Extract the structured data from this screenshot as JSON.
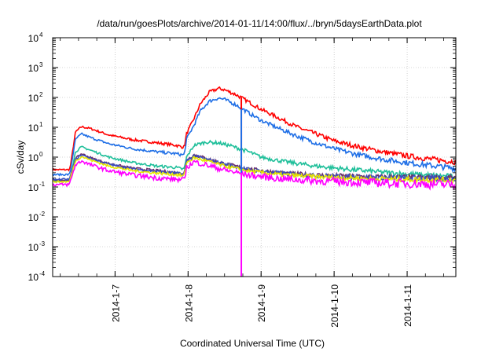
{
  "chart_data": {
    "type": "line",
    "title": "/data/run/goesPlots/archive/2014-01-11/14:00/flux/../bryn/5daysEarthData.plot",
    "xlabel": "Coordinated Universal Time (UTC)",
    "ylabel": "cSv/day",
    "y_scale": "log",
    "ylim": [
      0.0001,
      10000
    ],
    "y_ticks": [
      {
        "value": 0.0001,
        "base": "10",
        "exp": "-4"
      },
      {
        "value": 0.001,
        "base": "10",
        "exp": "-3"
      },
      {
        "value": 0.01,
        "base": "10",
        "exp": "-2"
      },
      {
        "value": 0.1,
        "base": "10",
        "exp": "-1"
      },
      {
        "value": 1,
        "base": "10",
        "exp": "0"
      },
      {
        "value": 10,
        "base": "10",
        "exp": "1"
      },
      {
        "value": 100,
        "base": "10",
        "exp": "2"
      },
      {
        "value": 1000,
        "base": "10",
        "exp": "3"
      },
      {
        "value": 10000,
        "base": "10",
        "exp": "4"
      }
    ],
    "xlim": [
      "2014-01-06T03:30",
      "2014-01-11T16:00"
    ],
    "x_ticks": [
      {
        "value": "2014-01-07T00:00",
        "label": "2014-1-7"
      },
      {
        "value": "2014-01-08T00:00",
        "label": "2014-1-8"
      },
      {
        "value": "2014-01-09T00:00",
        "label": "2014-1-9"
      },
      {
        "value": "2014-01-10T00:00",
        "label": "2014-1-10"
      },
      {
        "value": "2014-01-11T00:00",
        "label": "2014-1-11"
      }
    ],
    "grid": true,
    "legend": "none",
    "series": [
      {
        "color": "#ff0000",
        "points": [
          [
            "2014-01-06T03:30",
            0.38
          ],
          [
            "2014-01-06T09:00",
            0.38
          ],
          [
            "2014-01-06T09:20",
            0.5
          ],
          [
            "2014-01-06T11:00",
            7
          ],
          [
            "2014-01-06T13:00",
            10.5
          ],
          [
            "2014-01-06T16:00",
            9
          ],
          [
            "2014-01-06T22:00",
            5.5
          ],
          [
            "2014-01-07T06:00",
            3.8
          ],
          [
            "2014-01-07T14:00",
            3
          ],
          [
            "2014-01-07T20:00",
            2.5
          ],
          [
            "2014-01-07T22:00",
            2.2
          ],
          [
            "2014-01-07T22:45",
            2.2
          ],
          [
            "2014-01-07T23:30",
            6
          ],
          [
            "2014-01-08T02:00",
            20
          ],
          [
            "2014-01-08T04:00",
            60
          ],
          [
            "2014-01-08T07:00",
            150
          ],
          [
            "2014-01-08T10:00",
            200
          ],
          [
            "2014-01-08T12:00",
            180
          ],
          [
            "2014-01-08T16:00",
            120
          ],
          [
            "2014-01-08T20:00",
            70
          ],
          [
            "2014-01-09T00:00",
            40
          ],
          [
            "2014-01-09T06:00",
            20
          ],
          [
            "2014-01-09T12:00",
            10
          ],
          [
            "2014-01-09T18:00",
            6
          ],
          [
            "2014-01-10T00:00",
            3.5
          ],
          [
            "2014-01-10T08:00",
            2.2
          ],
          [
            "2014-01-10T16:00",
            1.5
          ],
          [
            "2014-01-11T00:00",
            1.1
          ],
          [
            "2014-01-11T08:00",
            0.85
          ],
          [
            "2014-01-11T16:00",
            0.7
          ]
        ]
      },
      {
        "color": "#1f6fe6",
        "points": [
          [
            "2014-01-06T03:30",
            0.26
          ],
          [
            "2014-01-06T09:00",
            0.26
          ],
          [
            "2014-01-06T09:20",
            0.35
          ],
          [
            "2014-01-06T11:00",
            4
          ],
          [
            "2014-01-06T13:00",
            6
          ],
          [
            "2014-01-06T16:00",
            4.5
          ],
          [
            "2014-01-06T22:00",
            2.8
          ],
          [
            "2014-01-07T06:00",
            1.9
          ],
          [
            "2014-01-07T14:00",
            1.5
          ],
          [
            "2014-01-07T20:00",
            1.3
          ],
          [
            "2014-01-07T22:00",
            1.2
          ],
          [
            "2014-01-07T22:45",
            1.2
          ],
          [
            "2014-01-07T23:30",
            4
          ],
          [
            "2014-01-08T02:00",
            12
          ],
          [
            "2014-01-08T04:00",
            35
          ],
          [
            "2014-01-08T07:00",
            75
          ],
          [
            "2014-01-08T10:00",
            95
          ],
          [
            "2014-01-08T12:00",
            85
          ],
          [
            "2014-01-08T16:00",
            55
          ],
          [
            "2014-01-08T20:00",
            30
          ],
          [
            "2014-01-09T00:00",
            17
          ],
          [
            "2014-01-09T06:00",
            9
          ],
          [
            "2014-01-09T12:00",
            5
          ],
          [
            "2014-01-09T18:00",
            3
          ],
          [
            "2014-01-10T00:00",
            1.9
          ],
          [
            "2014-01-10T08:00",
            1.2
          ],
          [
            "2014-01-10T16:00",
            0.85
          ],
          [
            "2014-01-11T00:00",
            0.65
          ],
          [
            "2014-01-11T08:00",
            0.52
          ],
          [
            "2014-01-11T16:00",
            0.42
          ]
        ]
      },
      {
        "color": "#1fbf9a",
        "points": [
          [
            "2014-01-06T03:30",
            0.16
          ],
          [
            "2014-01-06T09:00",
            0.16
          ],
          [
            "2014-01-06T09:20",
            0.22
          ],
          [
            "2014-01-06T11:00",
            1.5
          ],
          [
            "2014-01-06T13:00",
            2.2
          ],
          [
            "2014-01-06T16:00",
            1.7
          ],
          [
            "2014-01-06T22:00",
            1
          ],
          [
            "2014-01-07T06:00",
            0.65
          ],
          [
            "2014-01-07T14:00",
            0.5
          ],
          [
            "2014-01-07T20:00",
            0.45
          ],
          [
            "2014-01-07T22:00",
            0.4
          ],
          [
            "2014-01-07T22:45",
            0.4
          ],
          [
            "2014-01-07T23:30",
            1
          ],
          [
            "2014-01-08T02:00",
            2.5
          ],
          [
            "2014-01-08T06:00",
            3.2
          ],
          [
            "2014-01-08T10:00",
            3
          ],
          [
            "2014-01-08T14:00",
            2.4
          ],
          [
            "2014-01-08T20:00",
            1.5
          ],
          [
            "2014-01-09T00:00",
            1
          ],
          [
            "2014-01-09T08:00",
            0.7
          ],
          [
            "2014-01-09T18:00",
            0.5
          ],
          [
            "2014-01-10T06:00",
            0.38
          ],
          [
            "2014-01-10T18:00",
            0.3
          ],
          [
            "2014-01-11T06:00",
            0.25
          ],
          [
            "2014-01-11T16:00",
            0.22
          ]
        ]
      },
      {
        "color": "#6b2f6b",
        "points": [
          [
            "2014-01-06T03:30",
            0.17
          ],
          [
            "2014-01-06T09:00",
            0.17
          ],
          [
            "2014-01-06T09:20",
            0.22
          ],
          [
            "2014-01-06T11:00",
            0.9
          ],
          [
            "2014-01-06T13:00",
            1.3
          ],
          [
            "2014-01-06T16:00",
            0.95
          ],
          [
            "2014-01-06T22:00",
            0.6
          ],
          [
            "2014-01-07T06:00",
            0.42
          ],
          [
            "2014-01-07T14:00",
            0.35
          ],
          [
            "2014-01-07T20:00",
            0.3
          ],
          [
            "2014-01-07T22:00",
            0.28
          ],
          [
            "2014-01-07T22:45",
            0.28
          ],
          [
            "2014-01-07T23:30",
            0.8
          ],
          [
            "2014-01-08T02:00",
            1.2
          ],
          [
            "2014-01-08T06:00",
            0.9
          ],
          [
            "2014-01-08T12:00",
            0.6
          ],
          [
            "2014-01-08T20:00",
            0.4
          ],
          [
            "2014-01-09T06:00",
            0.3
          ],
          [
            "2014-01-09T18:00",
            0.25
          ],
          [
            "2014-01-10T12:00",
            0.22
          ],
          [
            "2014-01-11T16:00",
            0.2
          ]
        ]
      },
      {
        "color": "#3a4fbf",
        "points": [
          [
            "2014-01-06T03:30",
            0.18
          ],
          [
            "2014-01-06T09:00",
            0.18
          ],
          [
            "2014-01-06T09:20",
            0.23
          ],
          [
            "2014-01-06T11:00",
            0.85
          ],
          [
            "2014-01-06T13:00",
            1.2
          ],
          [
            "2014-01-06T16:00",
            0.9
          ],
          [
            "2014-01-06T22:00",
            0.58
          ],
          [
            "2014-01-07T06:00",
            0.4
          ],
          [
            "2014-01-07T14:00",
            0.33
          ],
          [
            "2014-01-07T20:00",
            0.29
          ],
          [
            "2014-01-07T22:00",
            0.27
          ],
          [
            "2014-01-07T22:45",
            0.27
          ],
          [
            "2014-01-07T23:30",
            0.75
          ],
          [
            "2014-01-08T02:00",
            1.1
          ],
          [
            "2014-01-08T06:00",
            0.85
          ],
          [
            "2014-01-08T12:00",
            0.58
          ],
          [
            "2014-01-08T20:00",
            0.38
          ],
          [
            "2014-01-09T06:00",
            0.29
          ],
          [
            "2014-01-09T18:00",
            0.24
          ],
          [
            "2014-01-10T12:00",
            0.21
          ],
          [
            "2014-01-11T16:00",
            0.19
          ]
        ]
      },
      {
        "color": "#e6e600",
        "points": [
          [
            "2014-01-06T03:30",
            0.15
          ],
          [
            "2014-01-06T09:00",
            0.15
          ],
          [
            "2014-01-06T09:20",
            0.2
          ],
          [
            "2014-01-06T11:00",
            0.75
          ],
          [
            "2014-01-06T13:00",
            1.05
          ],
          [
            "2014-01-06T16:00",
            0.8
          ],
          [
            "2014-01-06T22:00",
            0.5
          ],
          [
            "2014-01-07T06:00",
            0.35
          ],
          [
            "2014-01-07T14:00",
            0.29
          ],
          [
            "2014-01-07T20:00",
            0.26
          ],
          [
            "2014-01-07T22:00",
            0.24
          ],
          [
            "2014-01-07T22:45",
            0.24
          ],
          [
            "2014-01-07T23:30",
            0.65
          ],
          [
            "2014-01-08T02:00",
            0.95
          ],
          [
            "2014-01-08T06:00",
            0.75
          ],
          [
            "2014-01-08T12:00",
            0.5
          ],
          [
            "2014-01-08T20:00",
            0.34
          ],
          [
            "2014-01-09T06:00",
            0.26
          ],
          [
            "2014-01-09T18:00",
            0.22
          ],
          [
            "2014-01-10T12:00",
            0.19
          ],
          [
            "2014-01-11T16:00",
            0.17
          ]
        ]
      },
      {
        "color": "#ff00ff",
        "points": [
          [
            "2014-01-06T03:30",
            0.12
          ],
          [
            "2014-01-06T09:00",
            0.12
          ],
          [
            "2014-01-06T09:20",
            0.16
          ],
          [
            "2014-01-06T11:00",
            0.55
          ],
          [
            "2014-01-06T13:00",
            0.75
          ],
          [
            "2014-01-06T16:00",
            0.55
          ],
          [
            "2014-01-06T22:00",
            0.35
          ],
          [
            "2014-01-07T06:00",
            0.25
          ],
          [
            "2014-01-07T14:00",
            0.2
          ],
          [
            "2014-01-07T20:00",
            0.18
          ],
          [
            "2014-01-07T22:00",
            0.17
          ],
          [
            "2014-01-07T22:45",
            0.17
          ],
          [
            "2014-01-07T23:30",
            0.45
          ],
          [
            "2014-01-08T02:00",
            0.7
          ],
          [
            "2014-01-08T06:00",
            0.55
          ],
          [
            "2014-01-08T12:00",
            0.37
          ],
          [
            "2014-01-08T20:00",
            0.25
          ],
          [
            "2014-01-09T06:00",
            0.19
          ],
          [
            "2014-01-09T18:00",
            0.16
          ],
          [
            "2014-01-10T12:00",
            0.14
          ],
          [
            "2014-01-11T16:00",
            0.12
          ]
        ]
      }
    ],
    "drops": [
      {
        "x": "2014-01-08T17:30",
        "color": "#ff0000",
        "from": 100,
        "to": 0.5
      },
      {
        "x": "2014-01-08T17:30",
        "color": "#1f6fe6",
        "from": 40,
        "to": 0.3
      },
      {
        "x": "2014-01-08T17:30",
        "color": "#ff00ff",
        "from": 0.3,
        "to": 0.0001
      }
    ]
  }
}
